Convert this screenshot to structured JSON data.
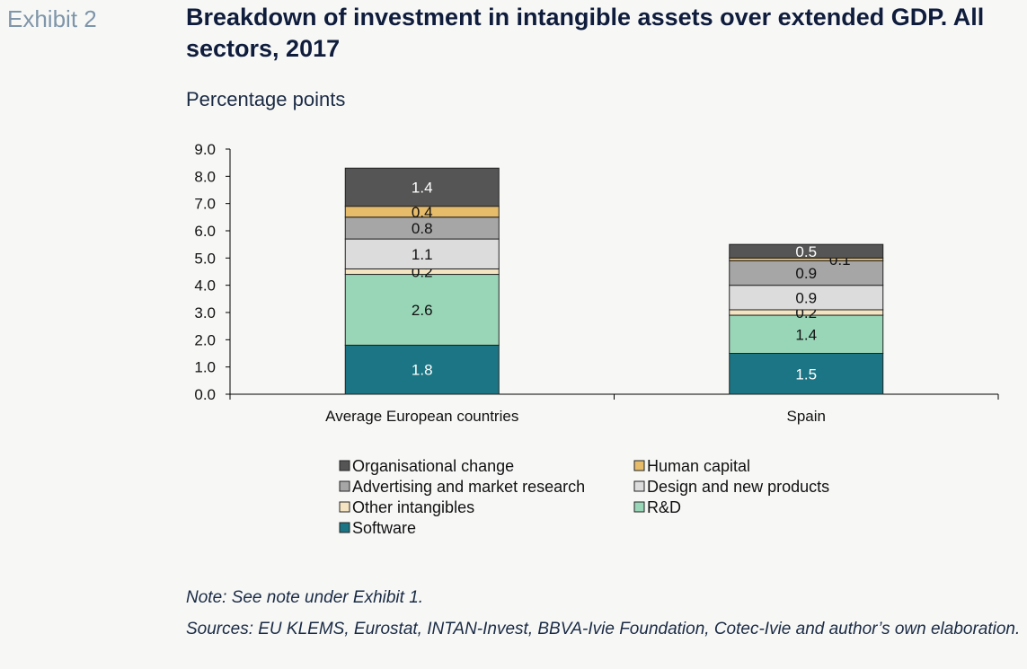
{
  "exhibit_label": "Exhibit 2",
  "title": "Breakdown of investment in intangible assets over extended GDP. All sectors, 2017",
  "subtitle": "Percentage points",
  "note": "Note: See note under Exhibit 1.",
  "sources": "Sources: EU KLEMS, Eurostat, INTAN-Invest, BBVA-Ivie Foundation, Cotec-Ivie and author’s own elaboration.",
  "chart_data": {
    "type": "bar",
    "stacked": true,
    "categories": [
      "Average European countries",
      "Spain"
    ],
    "ylim": [
      0,
      9
    ],
    "yticks": [
      "0.0",
      "1.0",
      "2.0",
      "3.0",
      "4.0",
      "5.0",
      "6.0",
      "7.0",
      "8.0",
      "9.0"
    ],
    "legend_position": "bottom",
    "series": [
      {
        "name": "Software",
        "color": "#1b7584",
        "label_color": "#ffffff",
        "values": [
          1.8,
          1.5
        ],
        "labels": [
          "1.8",
          "1.5"
        ]
      },
      {
        "name": "R&D",
        "color": "#99d5b7",
        "label_color": "#111111",
        "values": [
          2.6,
          1.4
        ],
        "labels": [
          "2.6",
          "1.4"
        ]
      },
      {
        "name": "Other intangibles",
        "color": "#f5e4c2",
        "label_color": "#111111",
        "values": [
          0.2,
          0.2
        ],
        "labels": [
          "0.2",
          "0.2"
        ]
      },
      {
        "name": "Design and new products",
        "color": "#dcdcdc",
        "label_color": "#111111",
        "values": [
          1.1,
          0.9
        ],
        "labels": [
          "1.1",
          "0.9"
        ]
      },
      {
        "name": "Advertising and market research",
        "color": "#a6a6a6",
        "label_color": "#111111",
        "values": [
          0.8,
          0.9
        ],
        "labels": [
          "0.8",
          "0.9"
        ]
      },
      {
        "name": "Human capital",
        "color": "#e6bb6a",
        "label_color": "#111111",
        "values": [
          0.4,
          0.1
        ],
        "labels": [
          "0.4",
          "0.1"
        ]
      },
      {
        "name": "Organisational change",
        "color": "#555555",
        "label_color": "#ffffff",
        "values": [
          1.4,
          0.5
        ],
        "labels": [
          "1.4",
          "0.5"
        ]
      }
    ],
    "legend_order": [
      "Organisational change",
      "Human capital",
      "Advertising and market research",
      "Design and new products",
      "Other intangibles",
      "R&D",
      "Software"
    ]
  }
}
